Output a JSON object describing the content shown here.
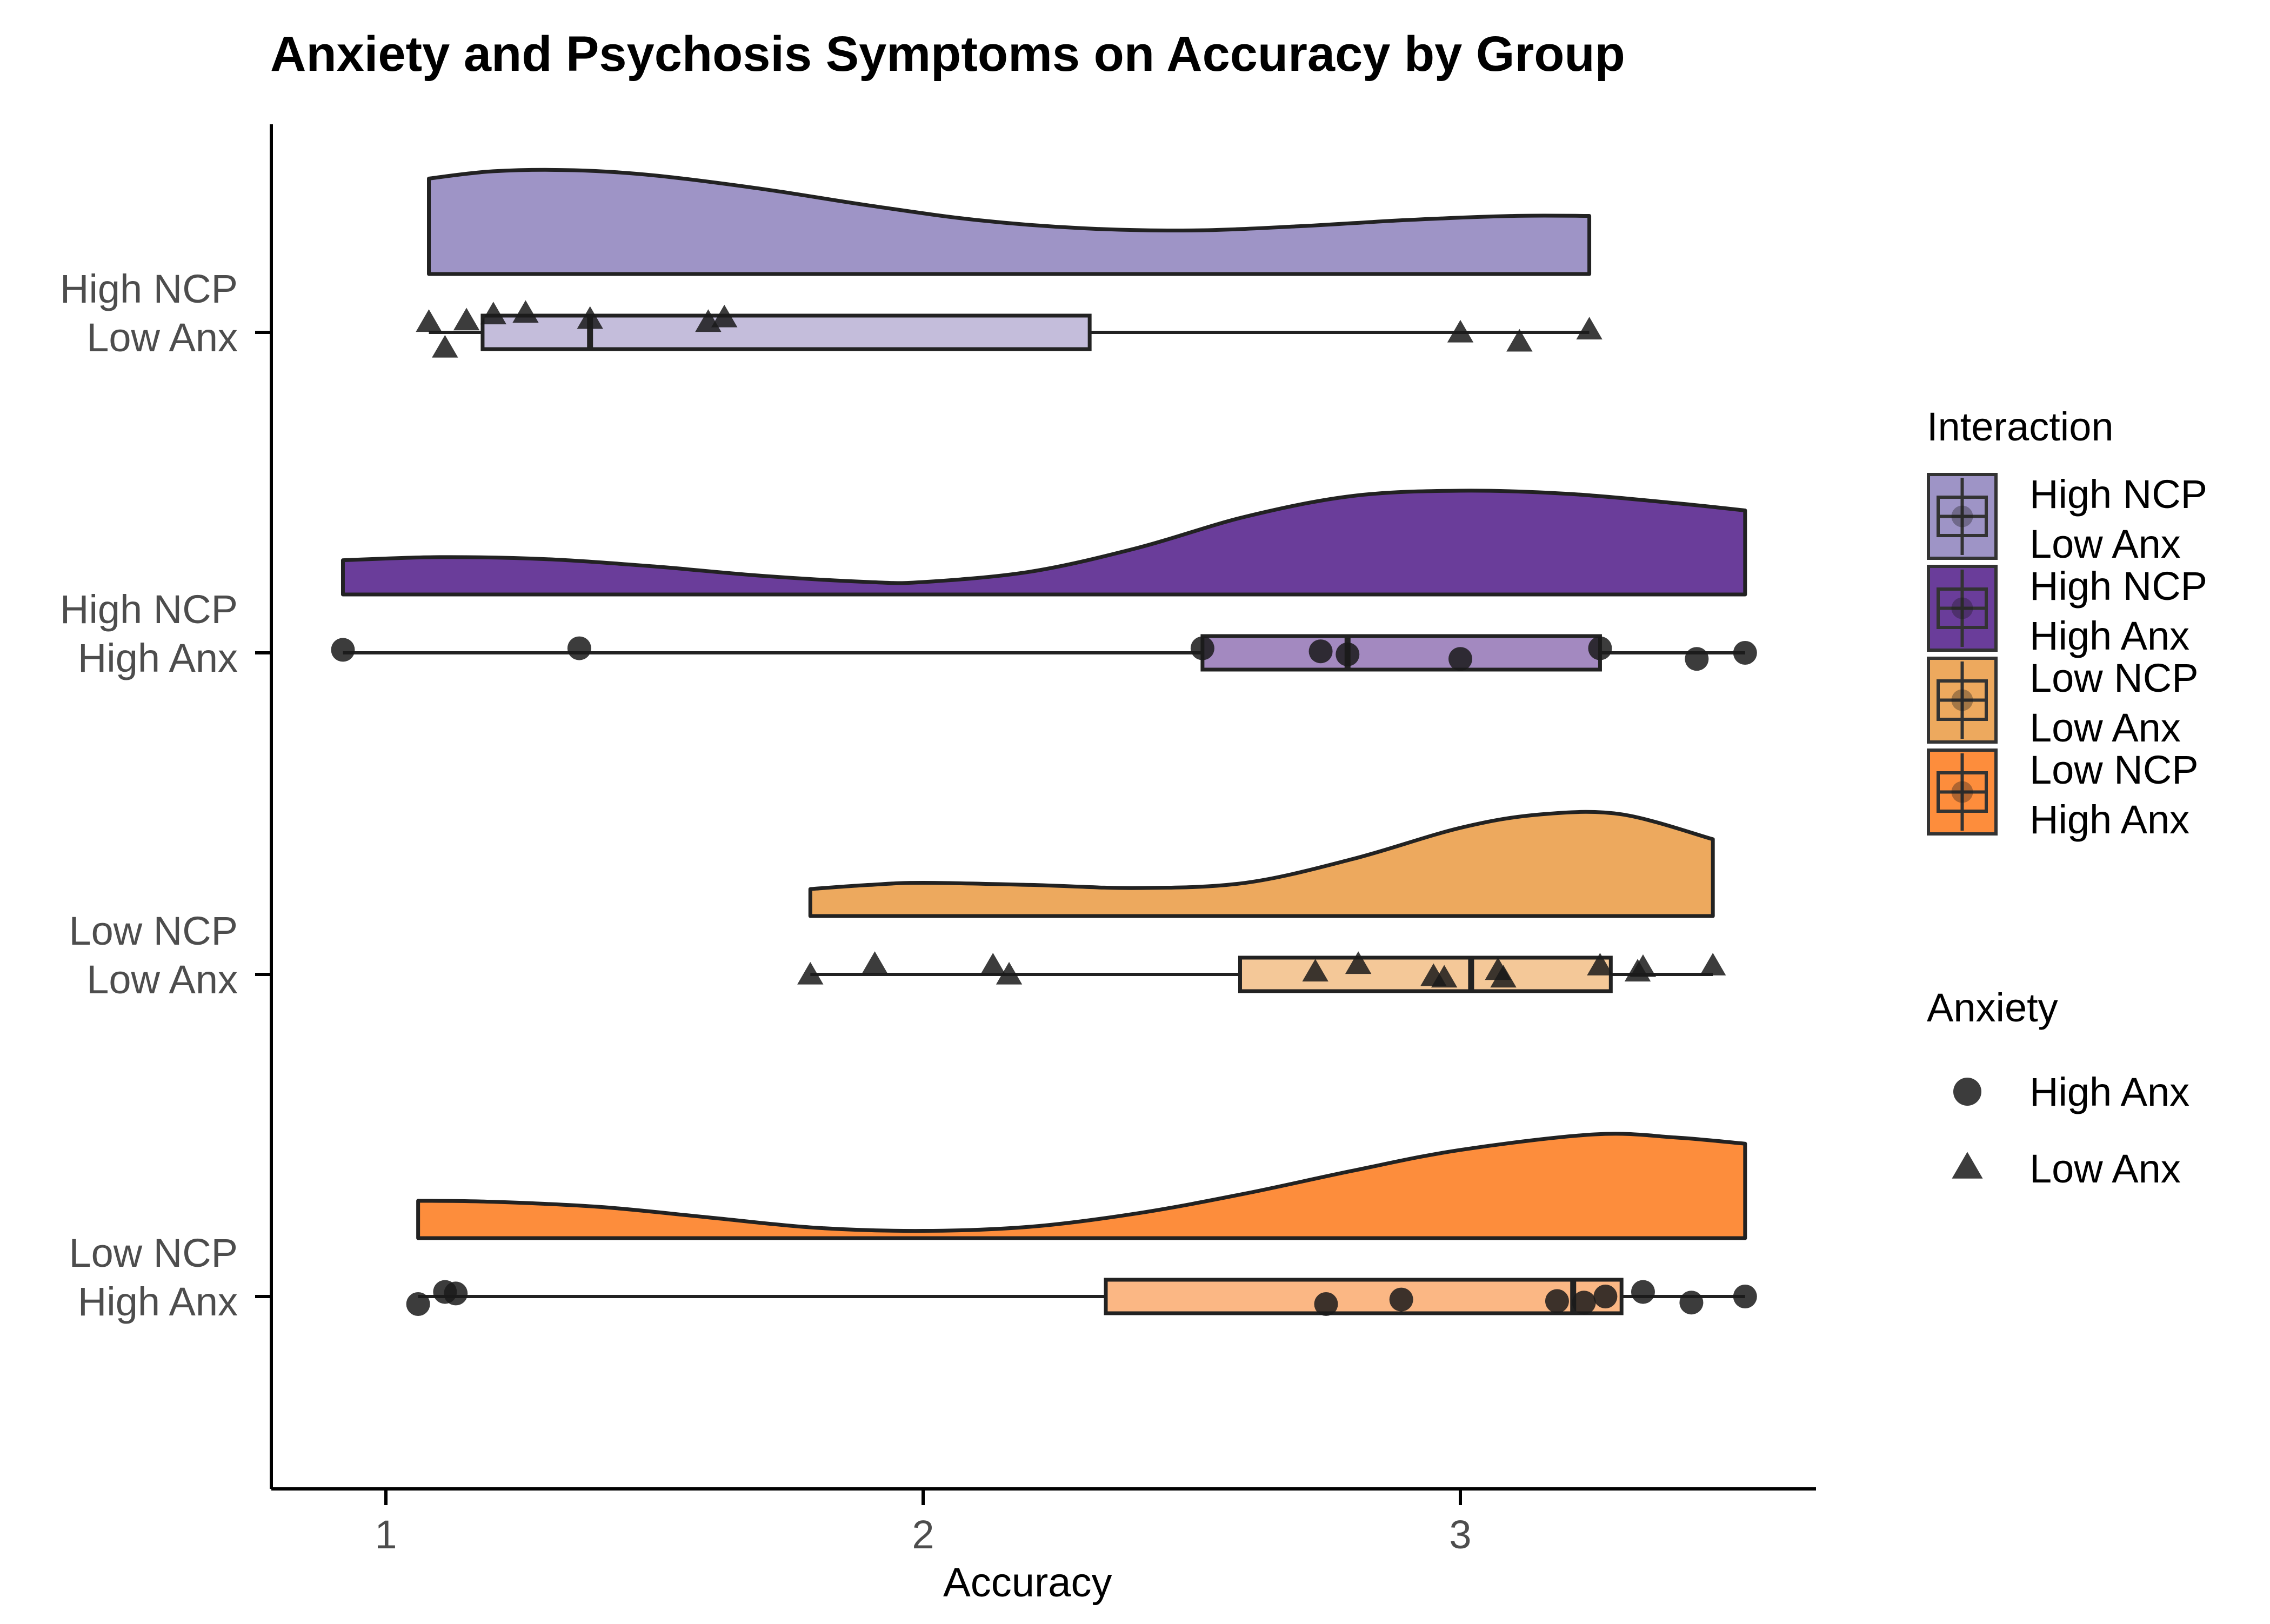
{
  "chart_data": {
    "type": "raincloud",
    "title": "Anxiety and Psychosis Symptoms on Accuracy by Group",
    "xlabel": "Accuracy",
    "ylabel": "",
    "xlim": [
      0.8,
      3.6
    ],
    "x_ticks": [
      1,
      2,
      3
    ],
    "x_tick_labels": [
      "1",
      "2",
      "3"
    ],
    "grid": false,
    "categories": [
      "High NCP\nLow Anx",
      "High NCP\nHigh Anx",
      "Low NCP\nLow Anx",
      "Low NCP\nHigh Anx"
    ],
    "groups": [
      {
        "name": "High NCP\nLow Anx",
        "label_lines": [
          "High NCP",
          "Low Anx"
        ],
        "fill": "#9e94c6",
        "box_fill": "#c4bddb",
        "anxiety": "Low Anx",
        "shape": "triangle",
        "box": {
          "q1": 1.18,
          "median": 1.38,
          "q3": 2.31,
          "whisker_low": 1.08,
          "whisker_high": 3.24
        },
        "density": {
          "x": [
            1.08,
            1.2,
            1.35,
            1.5,
            1.7,
            1.9,
            2.1,
            2.3,
            2.5,
            2.7,
            2.9,
            3.1,
            3.24
          ],
          "y": [
            0.92,
            0.99,
            1.0,
            0.95,
            0.82,
            0.66,
            0.52,
            0.44,
            0.42,
            0.46,
            0.52,
            0.56,
            0.56
          ]
        },
        "points": [
          {
            "x": 1.08,
            "jitter": 0.06
          },
          {
            "x": 1.11,
            "jitter": -0.11
          },
          {
            "x": 1.15,
            "jitter": 0.07
          },
          {
            "x": 1.2,
            "jitter": 0.11
          },
          {
            "x": 1.26,
            "jitter": 0.12
          },
          {
            "x": 1.38,
            "jitter": 0.08
          },
          {
            "x": 1.6,
            "jitter": 0.06
          },
          {
            "x": 1.63,
            "jitter": 0.09
          },
          {
            "x": 3.0,
            "jitter": -0.01
          },
          {
            "x": 3.11,
            "jitter": -0.07
          },
          {
            "x": 3.24,
            "jitter": 0.01
          }
        ]
      },
      {
        "name": "High NCP\nHigh Anx",
        "label_lines": [
          "High NCP",
          "High Anx"
        ],
        "fill": "#6a3d9a",
        "box_fill": "#a389c0",
        "anxiety": "High Anx",
        "shape": "circle",
        "box": {
          "q1": 2.52,
          "median": 2.79,
          "q3": 3.26,
          "whisker_low": 0.92,
          "whisker_high": 3.53
        },
        "density": {
          "x": [
            0.92,
            1.1,
            1.3,
            1.5,
            1.7,
            1.9,
            2.0,
            2.2,
            2.4,
            2.6,
            2.8,
            3.0,
            3.2,
            3.4,
            3.53
          ],
          "y": [
            0.33,
            0.36,
            0.34,
            0.27,
            0.18,
            0.12,
            0.12,
            0.22,
            0.45,
            0.75,
            0.95,
            1.0,
            0.97,
            0.88,
            0.81
          ]
        },
        "points": [
          {
            "x": 0.92,
            "jitter": 0.02
          },
          {
            "x": 1.36,
            "jitter": 0.03
          },
          {
            "x": 2.52,
            "jitter": 0.03
          },
          {
            "x": 2.74,
            "jitter": 0.01
          },
          {
            "x": 2.79,
            "jitter": -0.01
          },
          {
            "x": 3.0,
            "jitter": -0.04
          },
          {
            "x": 3.26,
            "jitter": 0.03
          },
          {
            "x": 3.44,
            "jitter": -0.04
          },
          {
            "x": 3.53,
            "jitter": 0.0
          }
        ]
      },
      {
        "name": "Low NCP\nLow Anx",
        "label_lines": [
          "Low NCP",
          "Low Anx"
        ],
        "fill": "#eda95e",
        "box_fill": "#f4c898",
        "anxiety": "Low Anx",
        "shape": "triangle",
        "box": {
          "q1": 2.59,
          "median": 3.02,
          "q3": 3.28,
          "whisker_low": 1.79,
          "whisker_high": 3.47
        },
        "density": {
          "x": [
            1.79,
            1.9,
            2.0,
            2.2,
            2.4,
            2.6,
            2.8,
            3.0,
            3.15,
            3.3,
            3.47
          ],
          "y": [
            0.26,
            0.3,
            0.32,
            0.3,
            0.27,
            0.32,
            0.55,
            0.85,
            0.98,
            0.98,
            0.74
          ]
        },
        "points": [
          {
            "x": 1.79,
            "jitter": -0.01
          },
          {
            "x": 1.91,
            "jitter": 0.06
          },
          {
            "x": 2.13,
            "jitter": 0.05
          },
          {
            "x": 2.16,
            "jitter": -0.01
          },
          {
            "x": 2.73,
            "jitter": 0.01
          },
          {
            "x": 2.81,
            "jitter": 0.06
          },
          {
            "x": 2.95,
            "jitter": -0.02
          },
          {
            "x": 2.97,
            "jitter": -0.03
          },
          {
            "x": 3.07,
            "jitter": 0.02
          },
          {
            "x": 3.08,
            "jitter": -0.03
          },
          {
            "x": 3.26,
            "jitter": 0.05
          },
          {
            "x": 3.33,
            "jitter": 0.01
          },
          {
            "x": 3.34,
            "jitter": 0.04
          },
          {
            "x": 3.47,
            "jitter": 0.05
          }
        ]
      },
      {
        "name": "Low NCP\nHigh Anx",
        "label_lines": [
          "Low NCP",
          "High Anx"
        ],
        "fill": "#fd8d3c",
        "box_fill": "#fbb784",
        "anxiety": "High Anx",
        "shape": "circle",
        "box": {
          "q1": 2.34,
          "median": 3.21,
          "q3": 3.3,
          "whisker_low": 1.06,
          "whisker_high": 3.53
        },
        "density": {
          "x": [
            1.06,
            1.2,
            1.4,
            1.6,
            1.8,
            2.0,
            2.2,
            2.4,
            2.6,
            2.8,
            3.0,
            3.25,
            3.4,
            3.53
          ],
          "y": [
            0.36,
            0.35,
            0.3,
            0.2,
            0.1,
            0.07,
            0.11,
            0.24,
            0.43,
            0.65,
            0.85,
            1.0,
            0.97,
            0.91
          ]
        },
        "points": [
          {
            "x": 1.06,
            "jitter": -0.05
          },
          {
            "x": 1.11,
            "jitter": 0.03
          },
          {
            "x": 1.13,
            "jitter": 0.02
          },
          {
            "x": 2.75,
            "jitter": -0.05
          },
          {
            "x": 2.89,
            "jitter": -0.02
          },
          {
            "x": 3.18,
            "jitter": -0.03
          },
          {
            "x": 3.23,
            "jitter": -0.04
          },
          {
            "x": 3.27,
            "jitter": 0.0
          },
          {
            "x": 3.34,
            "jitter": 0.03
          },
          {
            "x": 3.43,
            "jitter": -0.04
          },
          {
            "x": 3.53,
            "jitter": 0.0
          }
        ]
      }
    ],
    "legend": {
      "placement": "right",
      "interaction_title": "Interaction",
      "interaction_items": [
        {
          "label_lines": [
            "High NCP",
            "Low Anx"
          ],
          "fill": "#9e94c6"
        },
        {
          "label_lines": [
            "High NCP",
            "High Anx"
          ],
          "fill": "#6a3d9a"
        },
        {
          "label_lines": [
            "Low NCP",
            "Low Anx"
          ],
          "fill": "#eda95e"
        },
        {
          "label_lines": [
            "Low NCP",
            "High Anx"
          ],
          "fill": "#fd8d3c"
        }
      ],
      "anxiety_title": "Anxiety",
      "anxiety_items": [
        {
          "label": "High Anx",
          "shape": "circle"
        },
        {
          "label": "Low Anx",
          "shape": "triangle"
        }
      ]
    }
  }
}
